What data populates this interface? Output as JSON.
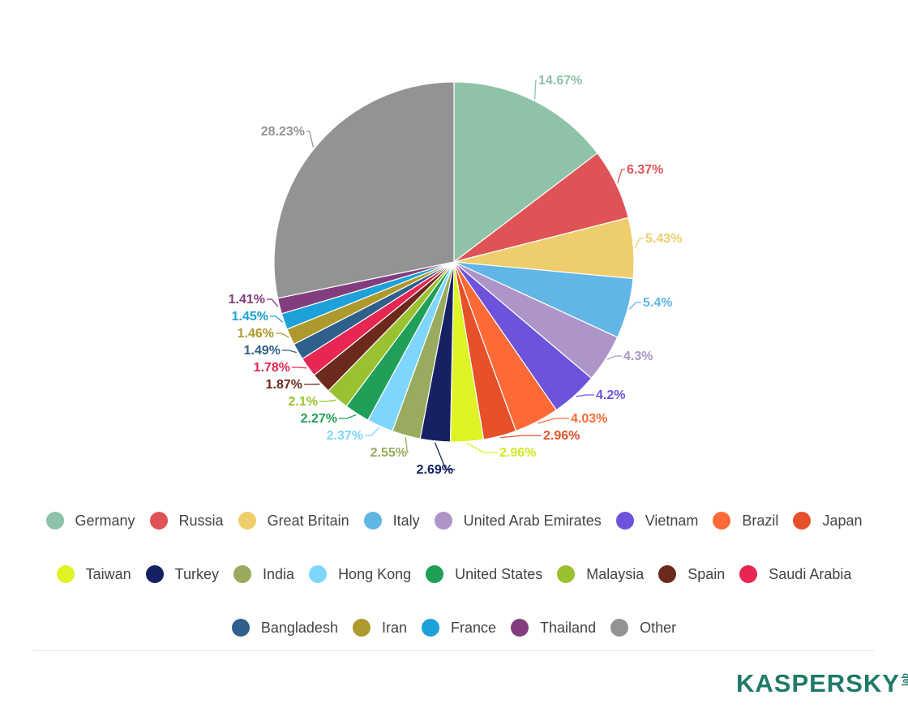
{
  "chart_data": {
    "type": "pie",
    "title": "",
    "start_angle_deg": 0,
    "direction": "clockwise",
    "legend_placement": "bottom",
    "slices": [
      {
        "label": "Germany",
        "value": 14.67,
        "display": "14.67%",
        "color": "#8fc3a8"
      },
      {
        "label": "Russia",
        "value": 6.37,
        "display": "6.37%",
        "color": "#df5356"
      },
      {
        "label": "Great Britain",
        "value": 5.43,
        "display": "5.43%",
        "color": "#eecd6c"
      },
      {
        "label": "Italy",
        "value": 5.4,
        "display": "5.4%",
        "color": "#62b6e5"
      },
      {
        "label": "United Arab Emirates",
        "value": 4.3,
        "display": "4.3%",
        "color": "#ad95c9"
      },
      {
        "label": "Vietnam",
        "value": 4.2,
        "display": "4.2%",
        "color": "#6d53dc"
      },
      {
        "label": "Brazil",
        "value": 4.03,
        "display": "4.03%",
        "color": "#fd6a37"
      },
      {
        "label": "Japan",
        "value": 2.96,
        "display": "2.96%",
        "color": "#e6512a"
      },
      {
        "label": "Taiwan",
        "value": 2.96,
        "display": "2.96%",
        "color": "#dff325"
      },
      {
        "label": "Turkey",
        "value": 2.69,
        "display": "2.69%",
        "color": "#152163"
      },
      {
        "label": "India",
        "value": 2.55,
        "display": "2.55%",
        "color": "#98ab5e"
      },
      {
        "label": "Hong Kong",
        "value": 2.37,
        "display": "2.37%",
        "color": "#7ed6ff"
      },
      {
        "label": "United States",
        "value": 2.27,
        "display": "2.27%",
        "color": "#1f9f57"
      },
      {
        "label": "Malaysia",
        "value": 2.1,
        "display": "2.1%",
        "color": "#9ac12f"
      },
      {
        "label": "Spain",
        "value": 1.87,
        "display": "1.87%",
        "color": "#6c2a1c"
      },
      {
        "label": "Saudi Arabia",
        "value": 1.78,
        "display": "1.78%",
        "color": "#e72653"
      },
      {
        "label": "Bangladesh",
        "value": 1.49,
        "display": "1.49%",
        "color": "#2f5f8b"
      },
      {
        "label": "Iran",
        "value": 1.46,
        "display": "1.46%",
        "color": "#ae9a2c"
      },
      {
        "label": "France",
        "value": 1.45,
        "display": "1.45%",
        "color": "#1ea0d8"
      },
      {
        "label": "Thailand",
        "value": 1.41,
        "display": "1.41%",
        "color": "#823d7e"
      },
      {
        "label": "Other",
        "value": 28.23,
        "display": "28.23%",
        "color": "#939393"
      }
    ]
  },
  "brand": {
    "logo_text": "KASPERSKY",
    "logo_suffix": "lab",
    "color": "#1f7a68"
  }
}
